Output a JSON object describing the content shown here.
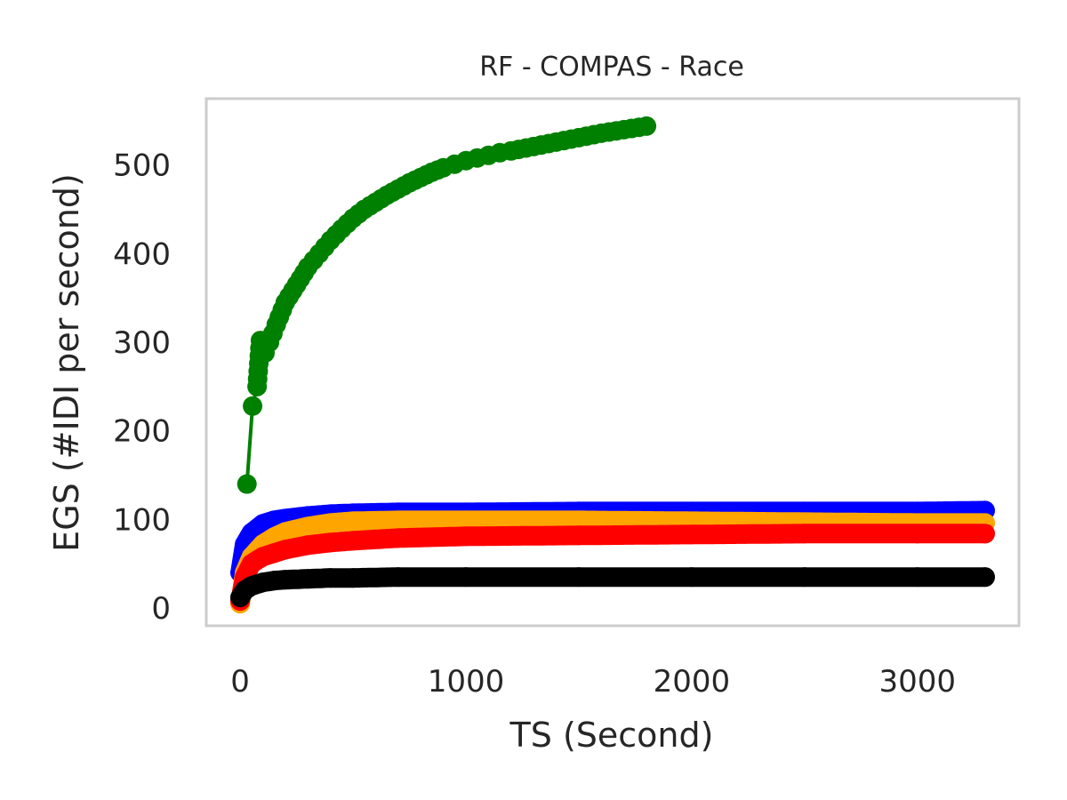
{
  "chart_data": {
    "type": "line",
    "title": "RF - COMPAS - Race",
    "xlabel": "TS (Second)",
    "ylabel": "EGS (#IDI  per second)",
    "xlim": [
      -150,
      3450
    ],
    "ylim": [
      -20,
      575
    ],
    "xticks": [
      0,
      1000,
      2000,
      3000
    ],
    "xtick_labels": [
      "0",
      "1000",
      "2000",
      "3000"
    ],
    "yticks": [
      0,
      100,
      200,
      300,
      400,
      500
    ],
    "ytick_labels": [
      "0",
      "100",
      "200",
      "300",
      "400",
      "500"
    ],
    "grid": false,
    "legend": "none",
    "series": [
      {
        "color": "#008000",
        "x": [
          30,
          55,
          75,
          90,
          100,
          110,
          130,
          160,
          200,
          250,
          300,
          350,
          400,
          450,
          500,
          550,
          600,
          650,
          700,
          750,
          800,
          850,
          900,
          950,
          1000,
          1050,
          1100,
          1150,
          1200,
          1300,
          1400,
          1500,
          1600,
          1700,
          1800
        ],
        "y": [
          140,
          228,
          250,
          302,
          292,
          288,
          300,
          320,
          345,
          365,
          385,
          400,
          415,
          428,
          440,
          450,
          458,
          466,
          473,
          480,
          486,
          492,
          497,
          501,
          505,
          508,
          511,
          514,
          516,
          521,
          526,
          531,
          536,
          540,
          544
        ]
      },
      {
        "color": "#0000ff",
        "x": [
          0,
          20,
          50,
          100,
          150,
          200,
          300,
          400,
          500,
          700,
          1000,
          1500,
          2000,
          2500,
          3000,
          3300
        ],
        "y": [
          40,
          72,
          85,
          95,
          99,
          101,
          104,
          106,
          107,
          108,
          108,
          109,
          109,
          109,
          109,
          110
        ]
      },
      {
        "color": "#ffa500",
        "x": [
          0,
          20,
          50,
          100,
          150,
          200,
          300,
          400,
          500,
          700,
          1000,
          1500,
          2000,
          2500,
          3000,
          3300
        ],
        "y": [
          5,
          40,
          58,
          72,
          80,
          86,
          92,
          96,
          98,
          99,
          99,
          99,
          98,
          97,
          96,
          96
        ]
      },
      {
        "color": "#ff0000",
        "x": [
          0,
          20,
          50,
          100,
          150,
          200,
          300,
          400,
          500,
          700,
          1000,
          1500,
          2000,
          2500,
          3000,
          3300
        ],
        "y": [
          8,
          35,
          50,
          58,
          62,
          66,
          71,
          74,
          76,
          79,
          81,
          82,
          83,
          84,
          84,
          84
        ]
      },
      {
        "color": "#000000",
        "x": [
          0,
          20,
          50,
          100,
          150,
          200,
          300,
          400,
          500,
          700,
          1000,
          1500,
          2000,
          2500,
          3000,
          3300
        ],
        "y": [
          12,
          20,
          25,
          29,
          31,
          32,
          33,
          34,
          34,
          35,
          35,
          35,
          35,
          35,
          35,
          35
        ]
      }
    ]
  }
}
